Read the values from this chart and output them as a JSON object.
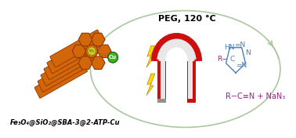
{
  "background_color": "#ffffff",
  "label_text": "Fe₃O₄@SiO₂@SBA-3@2-ATP-Cu",
  "peg_text": "PEG, 120 °C",
  "reaction_text1": "R−C≡N + NaN₃",
  "circle_color": "#aac8a0",
  "magnet_red": "#cc1010",
  "magnet_gray": "#909090",
  "magnet_white": "#e8e8e8",
  "catalyst_orange": "#d4660a",
  "catalyst_dark": "#8B3800",
  "sba_color": "#c8c828",
  "cu_green": "#40b020",
  "lightning_yellow": "#FFD700",
  "lightning_edge": "#B8860B",
  "text_blue": "#4a7fb5",
  "text_magenta": "#9b2090"
}
